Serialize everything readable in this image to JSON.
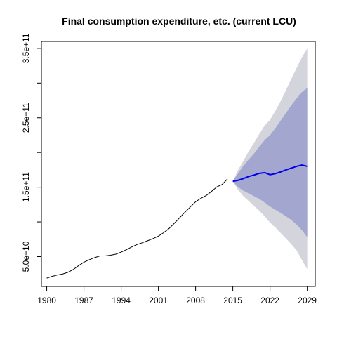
{
  "chart_data": {
    "type": "line",
    "title": "Final consumption expenditure, etc. (current LCU)",
    "xlabel": "",
    "ylabel": "",
    "xlim": [
      1979,
      2030.5
    ],
    "ylim": [
      7000000000.0,
      360000000000.0
    ],
    "x_ticks": [
      1980,
      1987,
      1994,
      2001,
      2008,
      2015,
      2022,
      2029
    ],
    "x_tick_labels": [
      "1980",
      "1987",
      "1994",
      "2001",
      "2008",
      "2015",
      "2022",
      "2029"
    ],
    "y_ticks": [
      50000000000.0,
      100000000000.0,
      150000000000.0,
      200000000000.0,
      250000000000.0,
      300000000000.0,
      350000000000.0
    ],
    "y_tick_labels": [
      "5.0e+10",
      "",
      "1.5e+11",
      "",
      "2.5e+11",
      "",
      "3.5e+11"
    ],
    "grid": false,
    "colors": {
      "history": "#000000",
      "forecast": "#0000ee",
      "band_80": "#a3a7cf",
      "band_95": "#d4d4dc"
    },
    "history": {
      "x": [
        1980,
        1981,
        1982,
        1983,
        1984,
        1985,
        1986,
        1987,
        1988,
        1989,
        1990,
        1991,
        1992,
        1993,
        1994,
        1995,
        1996,
        1997,
        1998,
        1999,
        2000,
        2001,
        2002,
        2003,
        2004,
        2005,
        2006,
        2007,
        2008,
        2009,
        2010,
        2011,
        2012,
        2013,
        2014
      ],
      "y": [
        19000000000.0,
        21500000000.0,
        23500000000.0,
        25000000000.0,
        27500000000.0,
        31500000000.0,
        37000000000.0,
        42000000000.0,
        45500000000.0,
        48500000000.0,
        51000000000.0,
        51000000000.0,
        52000000000.0,
        53500000000.0,
        56500000000.0,
        60000000000.0,
        64000000000.0,
        67500000000.0,
        70000000000.0,
        73000000000.0,
        76000000000.0,
        79500000000.0,
        84500000000.0,
        90500000000.0,
        98000000000.0,
        106000000000.0,
        114000000000.0,
        121500000000.0,
        129000000000.0,
        134000000000.0,
        138000000000.0,
        144000000000.0,
        150500000000.0,
        154000000000.0,
        162000000000.0
      ]
    },
    "series": [
      {
        "x": [
          2015,
          2016,
          2017,
          2018,
          2019,
          2020,
          2021,
          2022,
          2023,
          2024,
          2025,
          2026,
          2027,
          2028,
          2029
        ],
        "y": [
          158500000000.0,
          160000000000.0,
          162500000000.0,
          165500000000.0,
          167500000000.0,
          170000000000.0,
          171000000000.0,
          168000000000.0,
          169500000000.0,
          172000000000.0,
          175000000000.0,
          177500000000.0,
          180000000000.0,
          182000000000.0,
          180000000000.0
        ],
        "lo80": [
          158500000000.0,
          150000000000.0,
          145000000000.0,
          141000000000.0,
          137000000000.0,
          133000000000.0,
          128000000000.0,
          122000000000.0,
          117500000000.0,
          113000000000.0,
          108000000000.0,
          103000000000.0,
          96000000000.0,
          88000000000.0,
          78000000000.0
        ],
        "hi80": [
          158500000000.0,
          170000000000.0,
          181000000000.0,
          190000000000.0,
          198500000000.0,
          208500000000.0,
          218000000000.0,
          225000000000.0,
          235000000000.0,
          246000000000.0,
          257000000000.0,
          268000000000.0,
          278000000000.0,
          287000000000.0,
          293000000000.0
        ],
        "lo95": [
          158500000000.0,
          146000000000.0,
          137000000000.0,
          130000000000.0,
          123000000000.0,
          116000000000.0,
          108000000000.0,
          99000000000.0,
          92000000000.0,
          84000000000.0,
          76000000000.0,
          68000000000.0,
          59000000000.0,
          45000000000.0,
          32000000000.0
        ],
        "hi95": [
          158500000000.0,
          175000000000.0,
          188000000000.0,
          202000000000.0,
          214000000000.0,
          227000000000.0,
          239000000000.0,
          247000000000.0,
          260000000000.0,
          274000000000.0,
          290000000000.0,
          306000000000.0,
          322000000000.0,
          337000000000.0,
          350000000000.0
        ]
      }
    ]
  }
}
